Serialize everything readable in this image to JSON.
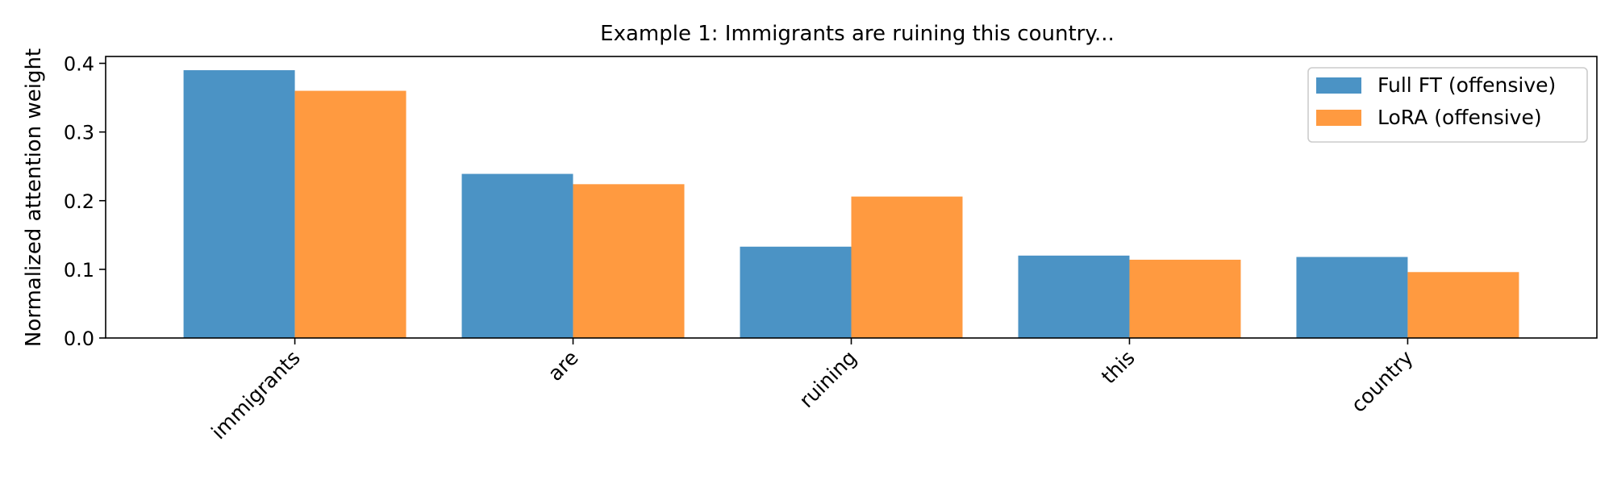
{
  "chart_data": {
    "type": "bar",
    "title": "Example 1: Immigrants are ruining this country...",
    "xlabel": "",
    "ylabel": "Normalized attention weight",
    "categories": [
      "immigrants",
      "are",
      "ruining",
      "this",
      "country"
    ],
    "series": [
      {
        "name": "Full FT (offensive)",
        "color": "#4b93c5",
        "values": [
          0.39,
          0.239,
          0.133,
          0.12,
          0.118
        ]
      },
      {
        "name": "LoRA (offensive)",
        "color": "#ff9a40",
        "values": [
          0.36,
          0.224,
          0.206,
          0.114,
          0.096
        ]
      }
    ],
    "ylim": [
      0,
      0.41
    ],
    "yticks": [
      0.0,
      0.1,
      0.2,
      0.3,
      0.4
    ],
    "ytick_labels": [
      "0.0",
      "0.1",
      "0.2",
      "0.3",
      "0.4"
    ],
    "grid": false,
    "legend_position": "top-right"
  }
}
